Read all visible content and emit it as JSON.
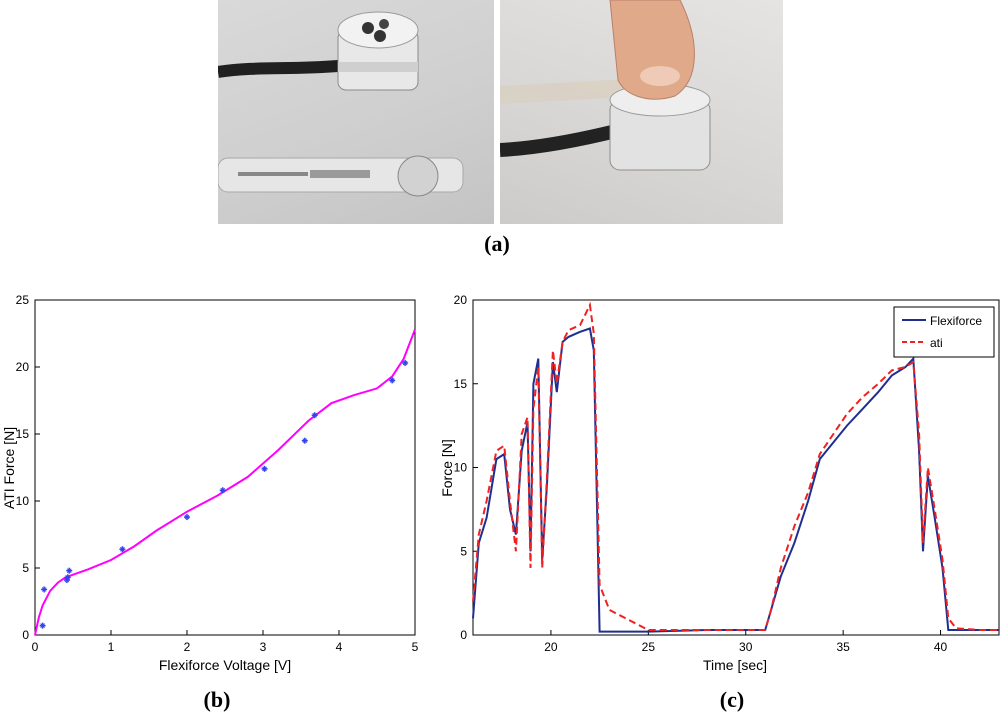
{
  "captions": {
    "a": "(a)",
    "b": "(b)",
    "c": "(c)"
  },
  "photos": {
    "left": {
      "description_icon": "flexiforce-and-load-cell-photo"
    },
    "right": {
      "description_icon": "finger-pressing-sensor-photo"
    }
  },
  "chart_data": [
    {
      "type": "scatter",
      "title": "",
      "xlabel": "Flexiforce Voltage [V]",
      "ylabel": "ATI Force [N]",
      "xlim": [
        0,
        5
      ],
      "ylim": [
        0,
        25
      ],
      "xticks": [
        "0",
        "1",
        "2",
        "3",
        "4",
        "5"
      ],
      "yticks": [
        "0",
        "5",
        "10",
        "15",
        "20",
        "25"
      ],
      "grid": false,
      "points": {
        "color": "#3344ee",
        "x": [
          0.1,
          0.12,
          0.42,
          0.43,
          0.45,
          1.15,
          2.0,
          2.47,
          3.02,
          3.55,
          3.68,
          4.7,
          4.87
        ],
        "y": [
          0.7,
          3.4,
          4.1,
          4.3,
          4.8,
          6.4,
          8.8,
          10.8,
          12.4,
          14.5,
          16.4,
          19.0,
          20.3
        ]
      },
      "fit_curve": {
        "color": "#ff00ff",
        "x": [
          0.0,
          0.05,
          0.1,
          0.2,
          0.3,
          0.4,
          0.5,
          0.7,
          1.0,
          1.3,
          1.6,
          2.0,
          2.4,
          2.8,
          3.2,
          3.6,
          3.9,
          4.2,
          4.5,
          4.7,
          4.85,
          5.0
        ],
        "y": [
          0.0,
          1.3,
          2.2,
          3.3,
          3.9,
          4.3,
          4.5,
          4.9,
          5.6,
          6.6,
          7.8,
          9.2,
          10.4,
          11.8,
          13.8,
          16.0,
          17.3,
          17.9,
          18.4,
          19.3,
          20.6,
          22.8
        ]
      }
    },
    {
      "type": "line",
      "title": "",
      "xlabel": "Time [sec]",
      "ylabel": "Force [N]",
      "xlim": [
        16,
        43
      ],
      "ylim": [
        0,
        20
      ],
      "xticks": [
        "20",
        "25",
        "30",
        "35",
        "40"
      ],
      "yticks": [
        "0",
        "5",
        "10",
        "15",
        "20"
      ],
      "grid": false,
      "legend_position": "top-right",
      "series": [
        {
          "name": "Flexiforce",
          "color": "#1f2f8f",
          "style": "solid",
          "x": [
            16.0,
            16.3,
            16.7,
            17.2,
            17.6,
            17.9,
            18.2,
            18.5,
            18.8,
            18.95,
            19.1,
            19.35,
            19.55,
            19.8,
            20.1,
            20.3,
            20.6,
            20.9,
            21.5,
            22.0,
            22.2,
            22.5,
            23.0,
            25.0,
            28.0,
            31.0,
            31.3,
            31.8,
            32.5,
            33.2,
            33.8,
            34.5,
            35.2,
            36.0,
            36.8,
            37.5,
            38.2,
            38.6,
            38.9,
            39.1,
            39.35,
            39.7,
            40.1,
            40.4,
            40.8,
            42.0,
            43.0
          ],
          "y": [
            1.0,
            5.5,
            7.0,
            10.5,
            10.8,
            7.5,
            6.0,
            11.0,
            12.7,
            5.0,
            15.0,
            16.5,
            4.5,
            9.0,
            16.3,
            14.5,
            17.5,
            17.8,
            18.1,
            18.3,
            17.0,
            0.2,
            0.2,
            0.2,
            0.3,
            0.3,
            1.5,
            3.5,
            5.5,
            8.0,
            10.5,
            11.5,
            12.5,
            13.5,
            14.5,
            15.5,
            16.0,
            16.5,
            11.0,
            5.0,
            9.5,
            7.0,
            4.0,
            0.3,
            0.3,
            0.3,
            0.3
          ]
        },
        {
          "name": "ati",
          "color": "#ee2222",
          "style": "dashed",
          "x": [
            16.0,
            16.3,
            16.7,
            17.2,
            17.6,
            17.9,
            18.2,
            18.5,
            18.8,
            18.95,
            19.1,
            19.35,
            19.55,
            19.8,
            20.1,
            20.3,
            20.6,
            20.9,
            21.5,
            22.0,
            22.2,
            22.5,
            23.0,
            25.0,
            28.0,
            31.0,
            31.3,
            31.8,
            32.5,
            33.2,
            33.8,
            34.5,
            35.2,
            36.0,
            36.8,
            37.5,
            38.2,
            38.6,
            38.9,
            39.1,
            39.35,
            39.7,
            40.1,
            40.4,
            40.8,
            42.0,
            43.0
          ],
          "y": [
            2.0,
            6.0,
            8.0,
            11.0,
            11.3,
            8.0,
            5.0,
            12.0,
            13.0,
            4.0,
            13.5,
            16.0,
            4.0,
            9.5,
            17.0,
            15.0,
            17.5,
            18.2,
            18.5,
            19.7,
            18.0,
            3.0,
            1.5,
            0.3,
            0.3,
            0.3,
            1.5,
            4.0,
            6.5,
            8.5,
            10.8,
            12.0,
            13.2,
            14.2,
            15.0,
            15.8,
            16.0,
            16.3,
            12.0,
            5.5,
            10.0,
            7.5,
            4.5,
            1.0,
            0.4,
            0.3,
            0.3
          ]
        }
      ]
    }
  ]
}
